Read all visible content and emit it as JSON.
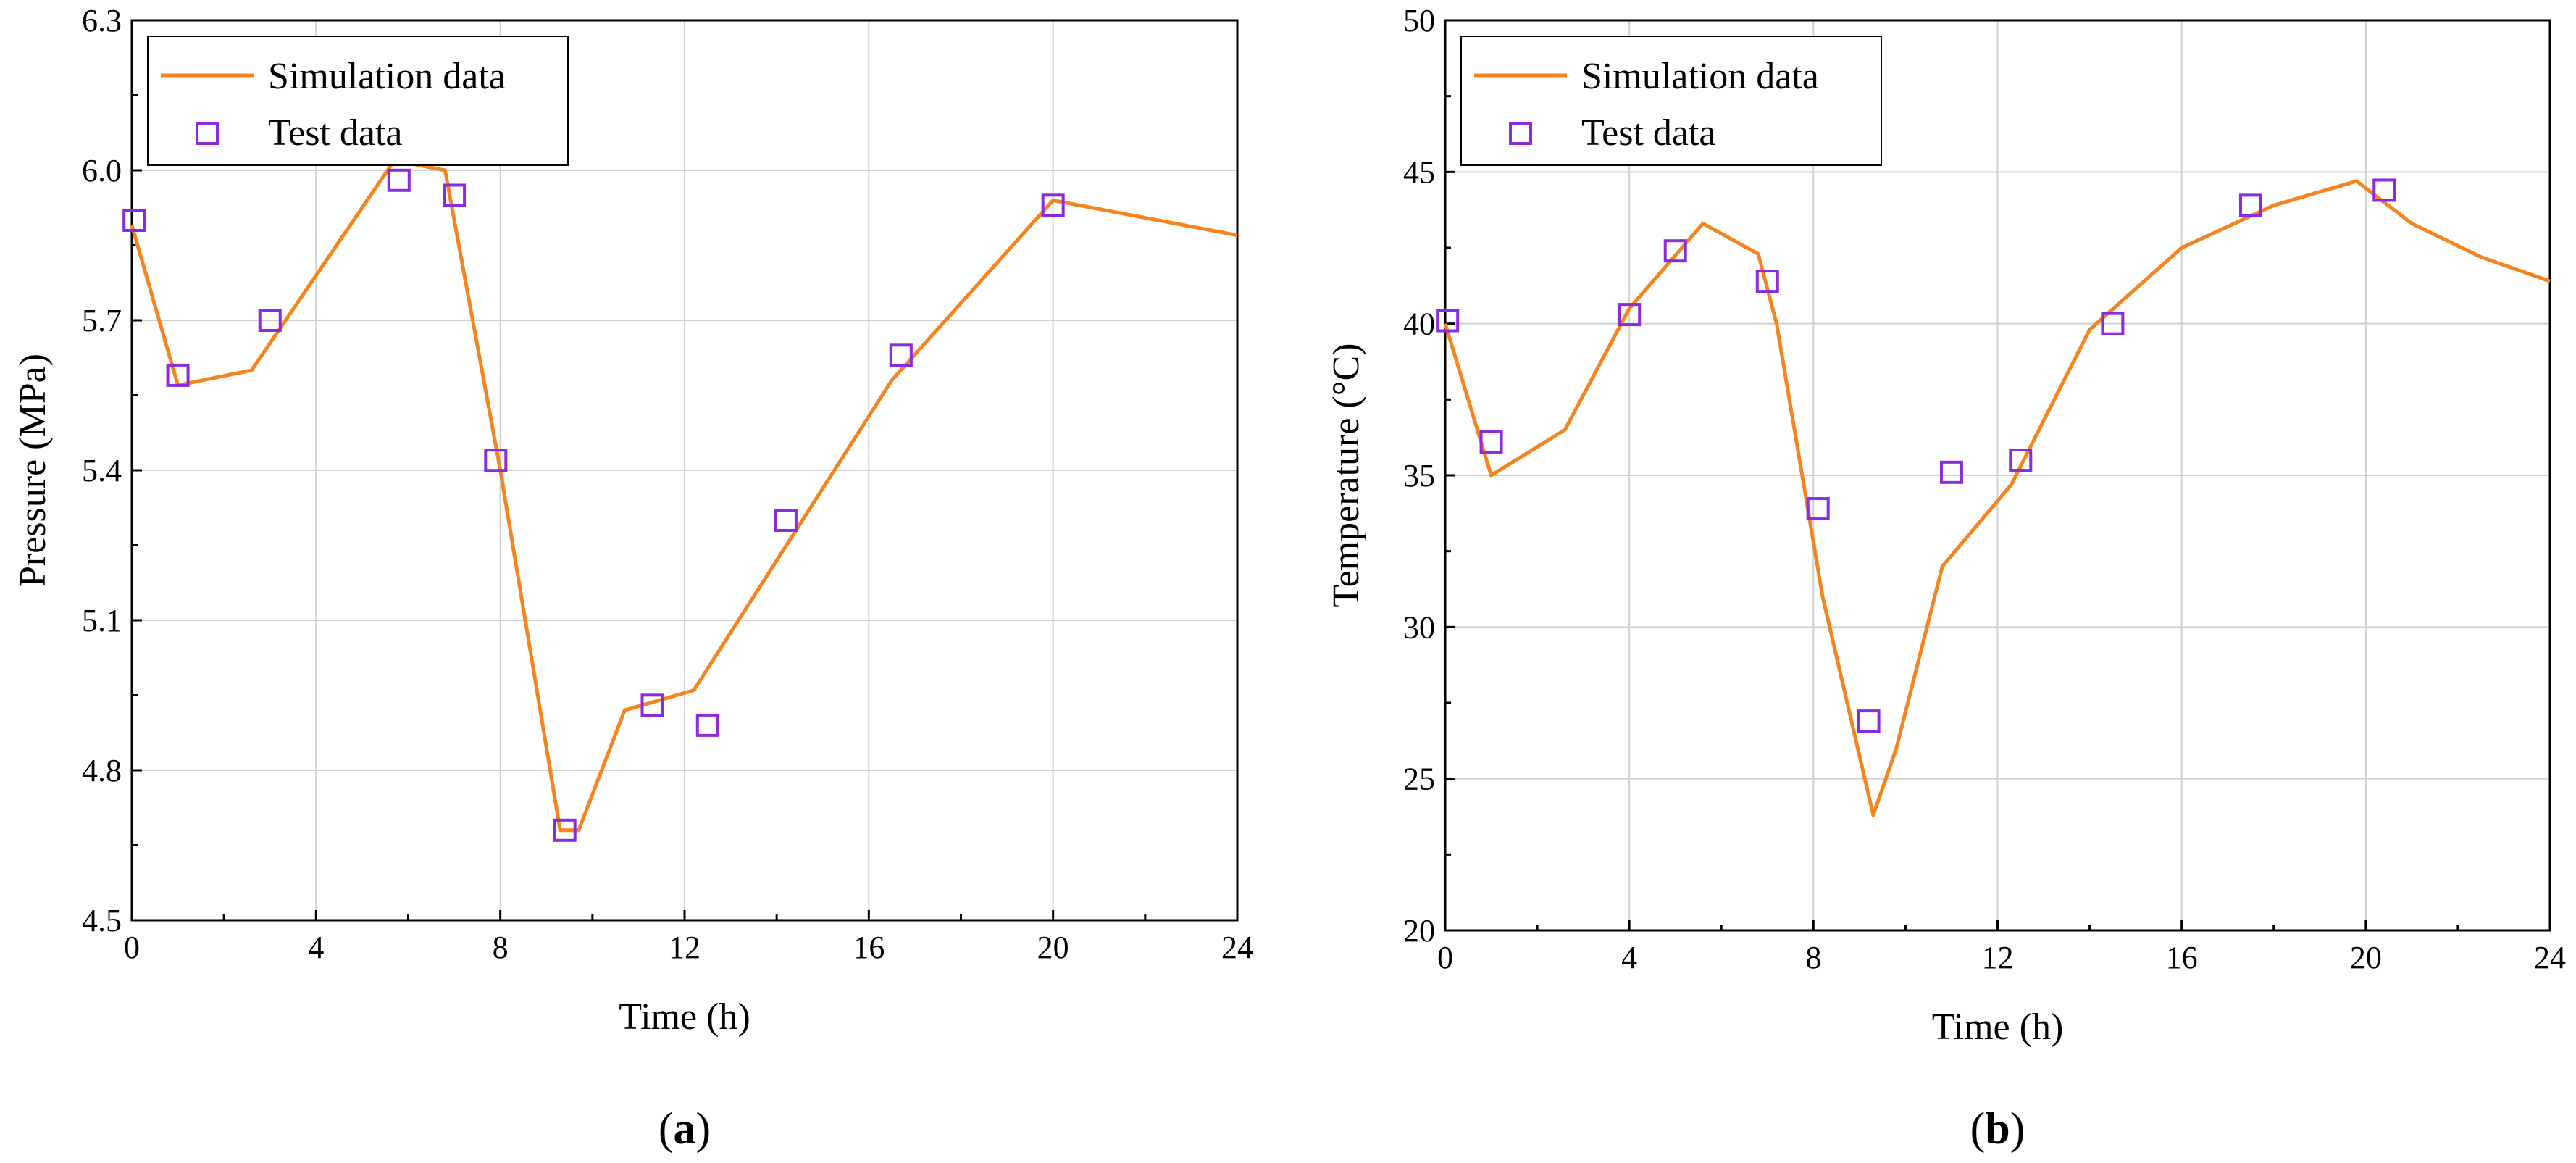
{
  "colors": {
    "simulation": "#f5841f",
    "test": "#8a2be2"
  },
  "chart_data": [
    {
      "type": "line",
      "panel_label": "a",
      "title": "",
      "xlabel": "Time (h)",
      "ylabel": "Pressure (MPa)",
      "xlim": [
        0,
        24
      ],
      "ylim": [
        4.5,
        6.3
      ],
      "xticks": [
        "0",
        "4",
        "8",
        "12",
        "16",
        "20",
        "24"
      ],
      "yticks": [
        "4.5",
        "4.8",
        "5.1",
        "5.4",
        "5.7",
        "6.0",
        "6.3"
      ],
      "grid": true,
      "legend_position": "top-left",
      "series": [
        {
          "name": "Simulation data",
          "kind": "line",
          "x": [
            0,
            1,
            2.6,
            5.7,
            6.8,
            8.0,
            9.3,
            9.7,
            10.7,
            12.2,
            16.5,
            20.0,
            24
          ],
          "y": [
            5.89,
            5.57,
            5.6,
            6.02,
            6.0,
            5.4,
            4.68,
            4.68,
            4.92,
            4.96,
            5.58,
            5.94,
            5.87
          ]
        },
        {
          "name": "Test data",
          "kind": "scatter",
          "x": [
            0.05,
            1.0,
            3.0,
            5.8,
            7.0,
            7.9,
            9.4,
            11.3,
            12.5,
            14.2,
            16.7,
            20.0
          ],
          "y": [
            5.9,
            5.59,
            5.7,
            5.98,
            5.95,
            5.42,
            4.68,
            4.93,
            4.89,
            5.3,
            5.63,
            5.93
          ]
        }
      ]
    },
    {
      "type": "line",
      "panel_label": "b",
      "title": "",
      "xlabel": "Time (h)",
      "ylabel": "Temperature (°C)",
      "xlim": [
        0,
        24
      ],
      "ylim": [
        20,
        50
      ],
      "xticks": [
        "0",
        "4",
        "8",
        "12",
        "16",
        "20",
        "24"
      ],
      "yticks": [
        "20",
        "25",
        "30",
        "35",
        "40",
        "45",
        "50"
      ],
      "grid": true,
      "legend_position": "top-left",
      "series": [
        {
          "name": "Simulation data",
          "kind": "line",
          "x": [
            0,
            1,
            2.6,
            4,
            5.6,
            6.8,
            7.2,
            8.2,
            9.3,
            9.8,
            10.8,
            12.3,
            14,
            16,
            18,
            19.8,
            21,
            22.5,
            24
          ],
          "y": [
            40,
            35,
            36.5,
            40.5,
            43.3,
            42.3,
            40,
            31,
            23.8,
            26,
            32,
            34.7,
            39.8,
            42.5,
            43.9,
            44.7,
            43.3,
            42.2,
            41.4
          ]
        },
        {
          "name": "Test data",
          "kind": "scatter",
          "x": [
            0.05,
            1.0,
            4.0,
            5.0,
            7.0,
            8.1,
            9.2,
            11.0,
            12.5,
            14.5,
            17.5,
            20.4
          ],
          "y": [
            40.1,
            36.1,
            40.3,
            42.4,
            41.4,
            33.9,
            26.9,
            35.1,
            35.5,
            40.0,
            43.9,
            44.4
          ]
        }
      ]
    }
  ]
}
